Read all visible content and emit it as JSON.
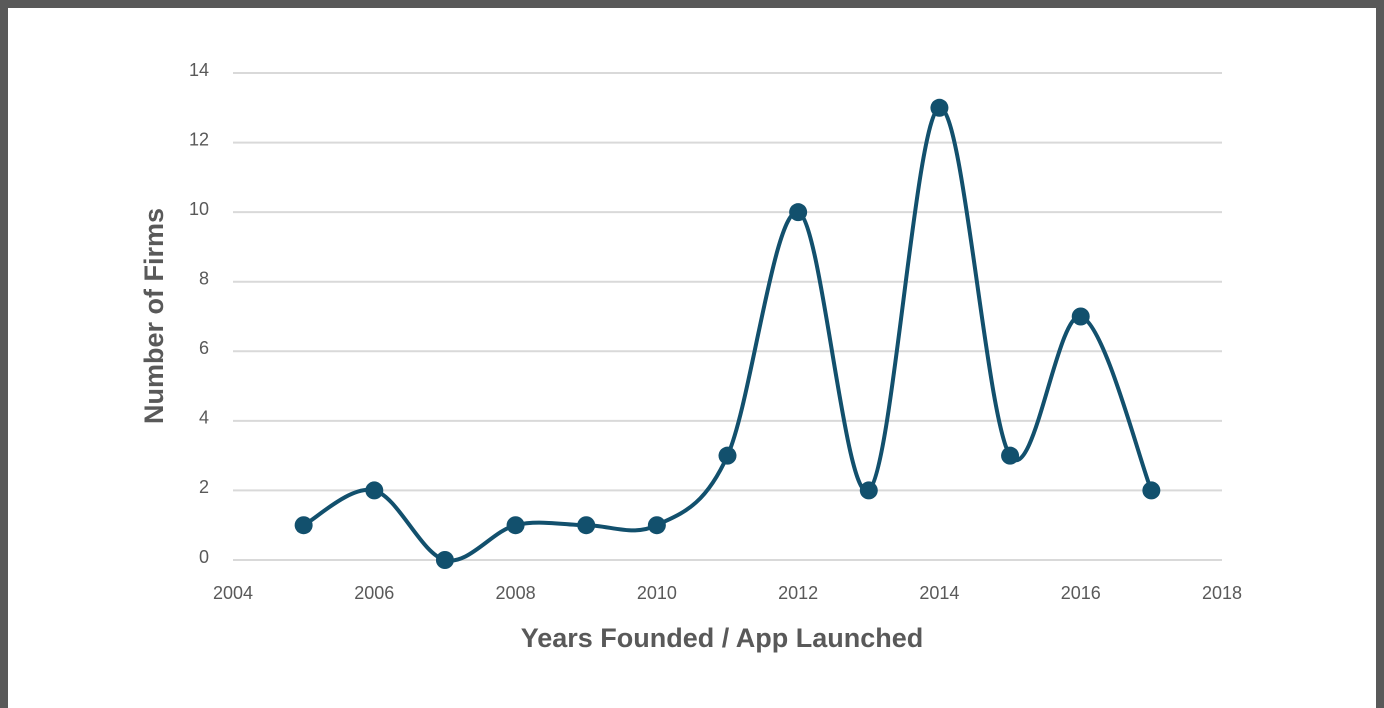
{
  "chart_data": {
    "type": "line",
    "x_label": "Years Founded / App Launched",
    "y_label": "Number of Firms",
    "x": [
      2005,
      2006,
      2007,
      2008,
      2009,
      2010,
      2011,
      2012,
      2013,
      2014,
      2015,
      2016,
      2017
    ],
    "series": [
      {
        "name": "Number of Firms",
        "color": "#12506d",
        "values": [
          1,
          2,
          0,
          1,
          1,
          1,
          3,
          10,
          2,
          13,
          3,
          7,
          2
        ]
      }
    ],
    "xlim": [
      2004,
      2018
    ],
    "xticks": [
      2004,
      2006,
      2008,
      2010,
      2012,
      2014,
      2016,
      2018
    ],
    "ylim": [
      0,
      14
    ],
    "yticks": [
      0,
      2,
      4,
      6,
      8,
      10,
      12,
      14
    ],
    "grid": true,
    "smooth": true
  }
}
